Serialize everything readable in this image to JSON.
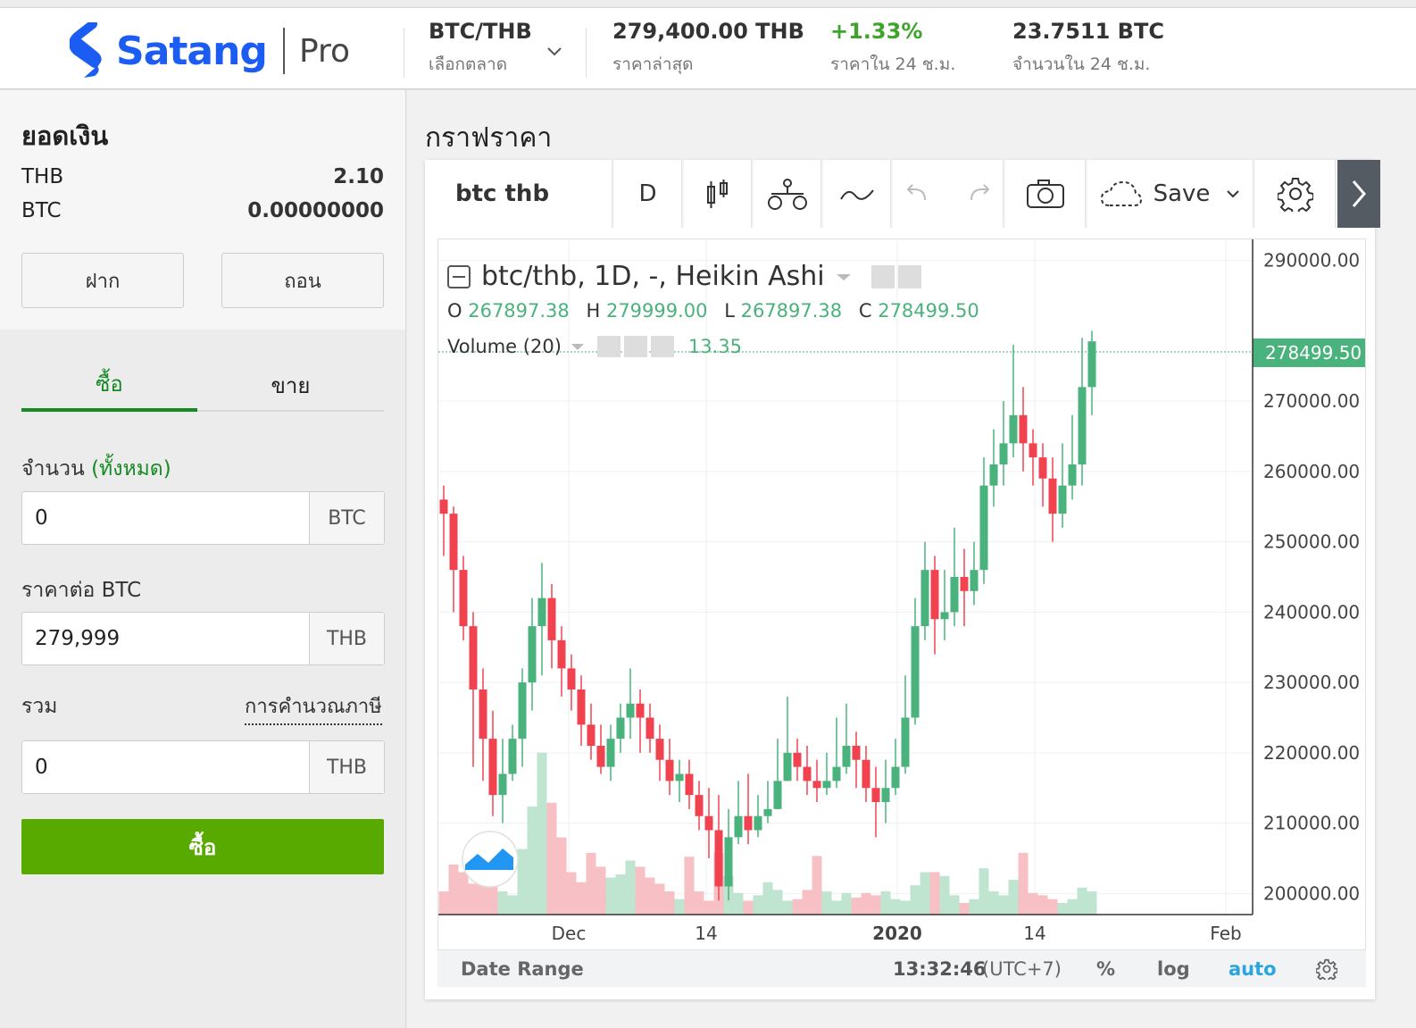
{
  "brand": {
    "name": "Satang",
    "product": "Pro",
    "color": "#1b5cf2"
  },
  "market": {
    "pair": "BTC/THB",
    "pair_label": "เลือกตลาด",
    "last_price": "279,400.00 THB",
    "last_price_label": "ราคาล่าสุด",
    "change": "+1.33%",
    "change_label": "ราคาใน 24 ช.ม.",
    "volume": "23.7511 BTC",
    "volume_label": "จำนวนใน 24 ช.ม."
  },
  "balance": {
    "title": "ยอดเงิน",
    "rows": [
      {
        "currency": "THB",
        "amount": "2.10"
      },
      {
        "currency": "BTC",
        "amount": "0.00000000"
      }
    ],
    "deposit_label": "ฝาก",
    "withdraw_label": "ถอน"
  },
  "order": {
    "tabs": [
      "ซื้อ",
      "ขาย"
    ],
    "amount_label": "จำนวน",
    "amount_all": "(ทั้งหมด)",
    "amount_value": "0",
    "amount_unit": "BTC",
    "price_label": "ราคาต่อ BTC",
    "price_value": "279,999",
    "price_unit": "THB",
    "total_label": "รวม",
    "tax_link": "การคำนวณภาษี",
    "total_value": "0",
    "total_unit": "THB",
    "submit_label": "ซื้อ",
    "submit_color": "#58a900"
  },
  "chart_panel": {
    "title": "กราฟราคา",
    "toolbar": {
      "symbol": "btc thb",
      "interval": "D",
      "save_label": "Save"
    },
    "legend": {
      "title": "btc/thb, 1D, -, Heikin Ashi",
      "o_label": "O",
      "o": "267897.38",
      "h_label": "H",
      "h": "279999.00",
      "l_label": "L",
      "l": "267897.38",
      "c_label": "C",
      "c": "278499.50",
      "volume_label": "Volume (20)",
      "volume_value": "13.35"
    },
    "last_price_tag": "278499.50",
    "footer": {
      "date_range": "Date Range",
      "time": "13:32:46",
      "tz": "(UTC+7)",
      "pct": "%",
      "log": "log",
      "auto": "auto"
    }
  },
  "chart_data": {
    "type": "candlestick",
    "y_axis_ticks": [
      "290000.00",
      "270000.00",
      "260000.00",
      "250000.00",
      "240000.00",
      "230000.00",
      "220000.00",
      "210000.00",
      "200000.00"
    ],
    "x_axis_ticks": [
      "Dec",
      "14",
      "2020",
      "14",
      "Feb"
    ],
    "ylim": [
      197000,
      293000
    ],
    "up_color": "#4ab27c",
    "down_color": "#f0424f",
    "candles": [
      [
        256000,
        254000,
        258000,
        248000
      ],
      [
        254000,
        246000,
        255000,
        240000
      ],
      [
        246000,
        238000,
        248000,
        236000
      ],
      [
        238000,
        229000,
        240000,
        218000
      ],
      [
        229000,
        222000,
        232000,
        216000
      ],
      [
        222000,
        214000,
        226000,
        211000
      ],
      [
        214000,
        217000,
        222000,
        210000
      ],
      [
        217000,
        222000,
        224000,
        216000
      ],
      [
        222000,
        230000,
        232000,
        218000
      ],
      [
        230000,
        238000,
        242000,
        226000
      ],
      [
        238000,
        242000,
        247000,
        231000
      ],
      [
        242000,
        236000,
        244000,
        232000
      ],
      [
        236000,
        232000,
        238000,
        228000
      ],
      [
        232000,
        229000,
        234000,
        226000
      ],
      [
        229000,
        224000,
        231000,
        221000
      ],
      [
        224000,
        221000,
        227000,
        219000
      ],
      [
        221000,
        218000,
        224000,
        217000
      ],
      [
        218000,
        222000,
        224000,
        216000
      ],
      [
        222000,
        225000,
        227000,
        220000
      ],
      [
        225000,
        227000,
        232000,
        222000
      ],
      [
        227000,
        225000,
        229000,
        220000
      ],
      [
        225000,
        222000,
        227000,
        220000
      ],
      [
        222000,
        219000,
        224000,
        216000
      ],
      [
        219000,
        216000,
        222000,
        214000
      ],
      [
        216000,
        217000,
        219000,
        213000
      ],
      [
        217000,
        214000,
        219000,
        212000
      ],
      [
        214000,
        211000,
        216000,
        209000
      ],
      [
        211000,
        209000,
        215000,
        205000
      ],
      [
        209000,
        201000,
        214000,
        199000
      ],
      [
        201000,
        208000,
        212000,
        199000
      ],
      [
        208000,
        211000,
        216000,
        207000
      ],
      [
        211000,
        209000,
        217000,
        207000
      ],
      [
        209000,
        211000,
        214000,
        208000
      ],
      [
        211000,
        212000,
        216000,
        210000
      ],
      [
        212000,
        216000,
        222000,
        212000
      ],
      [
        216000,
        220000,
        228000,
        216000
      ],
      [
        220000,
        218000,
        222000,
        216000
      ],
      [
        218000,
        216000,
        221000,
        214000
      ],
      [
        216000,
        215000,
        219000,
        213000
      ],
      [
        215000,
        216000,
        220000,
        214000
      ],
      [
        216000,
        218000,
        225000,
        215000
      ],
      [
        218000,
        221000,
        227000,
        217000
      ],
      [
        221000,
        219000,
        223000,
        215000
      ],
      [
        219000,
        215000,
        221000,
        213000
      ],
      [
        215000,
        213000,
        218000,
        208000
      ],
      [
        213000,
        215000,
        219000,
        210000
      ],
      [
        215000,
        218000,
        222000,
        214000
      ],
      [
        218000,
        225000,
        231000,
        217000
      ],
      [
        225000,
        238000,
        242000,
        224000
      ],
      [
        238000,
        246000,
        250000,
        236000
      ],
      [
        246000,
        239000,
        248000,
        234000
      ],
      [
        239000,
        240000,
        246000,
        236000
      ],
      [
        240000,
        245000,
        252000,
        238000
      ],
      [
        245000,
        243000,
        249000,
        238000
      ],
      [
        243000,
        246000,
        250000,
        241000
      ],
      [
        246000,
        258000,
        262000,
        244000
      ],
      [
        258000,
        261000,
        266000,
        255000
      ],
      [
        261000,
        264000,
        270000,
        258000
      ],
      [
        264000,
        268000,
        278000,
        262000
      ],
      [
        268000,
        264000,
        272000,
        260000
      ],
      [
        264000,
        262000,
        266000,
        258000
      ],
      [
        262000,
        259000,
        264000,
        255000
      ],
      [
        259000,
        254000,
        262000,
        250000
      ],
      [
        254000,
        258000,
        264000,
        252000
      ],
      [
        258000,
        261000,
        268000,
        256000
      ],
      [
        261000,
        272000,
        279000,
        258000
      ],
      [
        272000,
        278500,
        280000,
        268000
      ]
    ],
    "volumes": [
      30,
      65,
      55,
      40,
      38,
      48,
      30,
      25,
      85,
      140,
      210,
      145,
      100,
      55,
      42,
      80,
      62,
      48,
      52,
      70,
      62,
      48,
      40,
      30,
      20,
      75,
      30,
      18,
      80,
      50,
      28,
      18,
      25,
      42,
      32,
      18,
      20,
      32,
      76,
      30,
      18,
      28,
      22,
      28,
      25,
      30,
      20,
      18,
      38,
      55,
      55,
      50,
      25,
      15,
      20,
      60,
      30,
      25,
      45,
      80,
      28,
      25,
      20,
      15,
      20,
      35,
      30
    ]
  }
}
